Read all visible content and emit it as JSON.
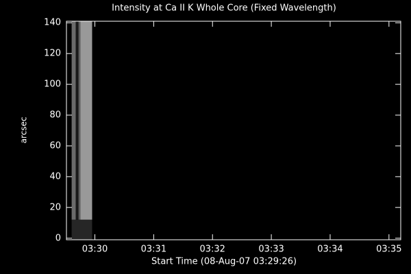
{
  "chart_data": {
    "type": "image",
    "title": "Intensity at Ca II K Whole Core (Fixed Wavelength)",
    "x_label": "Start Time (08-Aug-07 03:29:26)",
    "y_label": "arcsec",
    "xlim": [
      5,
      346
    ],
    "xticks": [
      {
        "value": 34,
        "label": "03:30"
      },
      {
        "value": 94,
        "label": "03:31"
      },
      {
        "value": 154,
        "label": "03:32"
      },
      {
        "value": 214,
        "label": "03:33"
      },
      {
        "value": 274,
        "label": "03:34"
      },
      {
        "value": 334,
        "label": "03:35"
      }
    ],
    "ylim": [
      -1,
      141
    ],
    "yticks": [
      0,
      20,
      40,
      60,
      80,
      100,
      120,
      140
    ],
    "cells": [
      {
        "x": [
          10.3,
          14.5
        ],
        "y": [
          12,
          141
        ],
        "intensity": 0.42
      },
      {
        "x": [
          14.5,
          17.3
        ],
        "y": [
          12,
          141
        ],
        "intensity": 0.1
      },
      {
        "x": [
          17.3,
          19.3
        ],
        "y": [
          12,
          141
        ],
        "intensity": 0.38
      },
      {
        "x": [
          19.3,
          31.2
        ],
        "y": [
          12,
          141
        ],
        "intensity": 0.6
      },
      {
        "x": [
          10.3,
          31.2
        ],
        "y": [
          -1,
          12
        ],
        "intensity": 0.15
      }
    ]
  }
}
